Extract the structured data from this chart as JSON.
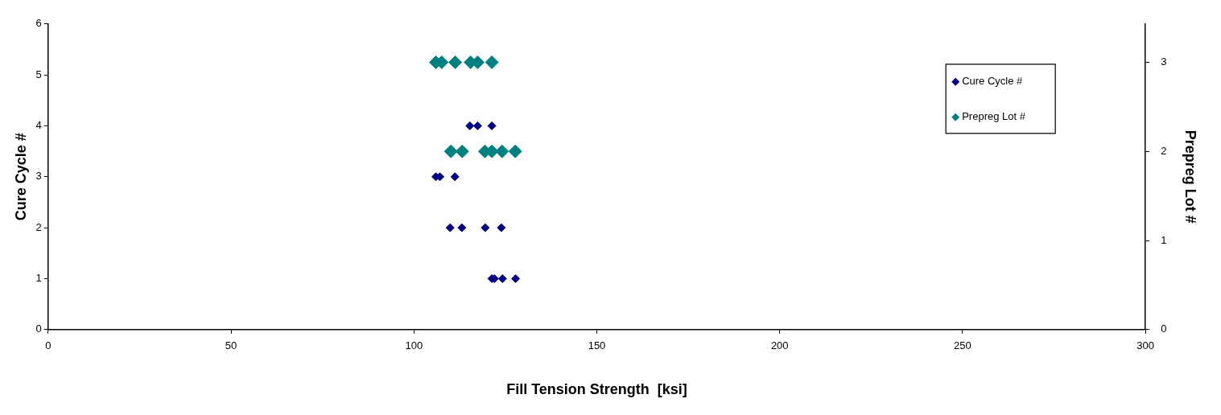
{
  "chart_data": {
    "type": "scatter",
    "xlabel": "Fill Tension Strength  [ksi]",
    "ylabel": "Cure Cycle #",
    "y2label": "Prepreg Lot #",
    "xlim": [
      0,
      300
    ],
    "xticks": [
      0,
      50,
      100,
      150,
      200,
      250,
      300
    ],
    "ylim": [
      0,
      6
    ],
    "yticks": [
      0,
      1,
      2,
      3,
      4,
      5,
      6
    ],
    "y2lim": [
      0,
      3.43
    ],
    "y2ticks": [
      0,
      1,
      2,
      3
    ],
    "grid": false,
    "legend": "top right",
    "marker": "diamond",
    "series": [
      {
        "name": "Cure Cycle #",
        "color": "#000080",
        "x": [
          115.3,
          117.4,
          121.3,
          106,
          107.1,
          111.2,
          109.9,
          113.1,
          119.5,
          123.9,
          121.3,
          122,
          124.2,
          127.8
        ],
        "values": [
          4,
          4,
          4,
          3,
          3,
          3,
          2,
          2,
          2,
          2,
          1,
          1,
          1,
          1
        ]
      },
      {
        "name": "Prepreg Lot #",
        "color": "#008080",
        "axis": "y2",
        "x": [
          106,
          107.6,
          111.3,
          115.5,
          117.4,
          121.3,
          110.1,
          113.2,
          119.4,
          121.3,
          124.1,
          127.7
        ],
        "values": [
          3,
          3,
          3,
          3,
          3,
          3,
          2,
          2,
          2,
          2,
          2,
          2
        ]
      }
    ]
  }
}
